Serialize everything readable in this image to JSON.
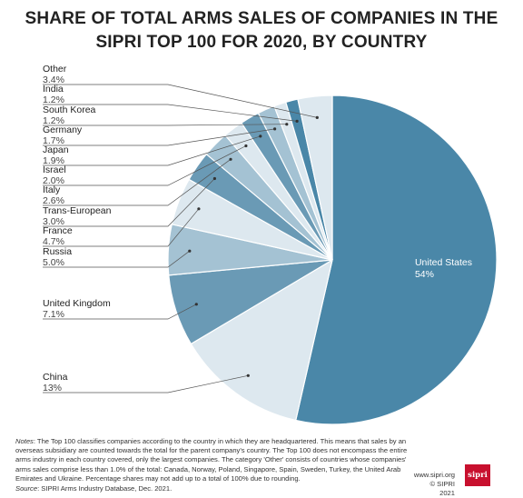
{
  "title_line1": "SHARE OF TOTAL ARMS SALES OF COMPANIES IN THE",
  "title_line2": "SIPRI TOP 100 FOR 2020, BY COUNTRY",
  "chart_data": {
    "type": "pie",
    "title": "SHARE OF TOTAL ARMS SALES OF COMPANIES IN THE SIPRI TOP 100 FOR 2020, BY COUNTRY",
    "slices": [
      {
        "name": "United States",
        "value": 54,
        "label": "54%",
        "color": "#4a87a8"
      },
      {
        "name": "China",
        "value": 13,
        "label": "13%",
        "color": "#dde8ef"
      },
      {
        "name": "United Kingdom",
        "value": 7.1,
        "label": "7.1%",
        "color": "#6a9ab5"
      },
      {
        "name": "Russia",
        "value": 5.0,
        "label": "5.0%",
        "color": "#a4c2d3"
      },
      {
        "name": "France",
        "value": 4.7,
        "label": "4.7%",
        "color": "#dde8ef"
      },
      {
        "name": "Trans-European",
        "value": 3.0,
        "label": "3.0%",
        "color": "#6a9ab5"
      },
      {
        "name": "Italy",
        "value": 2.6,
        "label": "2.6%",
        "color": "#a4c2d3"
      },
      {
        "name": "Israel",
        "value": 2.0,
        "label": "2.0%",
        "color": "#dde8ef"
      },
      {
        "name": "Japan",
        "value": 1.9,
        "label": "1.9%",
        "color": "#6a9ab5"
      },
      {
        "name": "Germany",
        "value": 1.7,
        "label": "1.7%",
        "color": "#a4c2d3"
      },
      {
        "name": "South Korea",
        "value": 1.2,
        "label": "1.2%",
        "color": "#dde8ef"
      },
      {
        "name": "India",
        "value": 1.2,
        "label": "1.2%",
        "color": "#4a87a8"
      },
      {
        "name": "Other",
        "value": 3.4,
        "label": "3.4%",
        "color": "#dde8ef"
      }
    ]
  },
  "notes_label": "Notes",
  "notes_text": ": The Top 100 classifies companies according to the country in which they are headquartered. This means that sales by an overseas subsidiary are counted towards the total for the parent company's country. The Top 100 does not encompass the entire arms industry in each country covered, only the largest companies. The category 'Other' consists of countries whose companies' arms sales comprise less than 1.0% of the total: Canada, Norway, Poland, Singapore, Spain, Sweden, Turkey, the United Arab Emirates and Ukraine. Percentage shares may not add up to a total of 100% due to rounding.",
  "source_label": "Source",
  "source_text": ": SIPRI Arms Industry Database, Dec. 2021.",
  "footer_url": "www.sipri.org",
  "footer_copyright": "© SIPRI 2021",
  "logo_text": "sipri"
}
